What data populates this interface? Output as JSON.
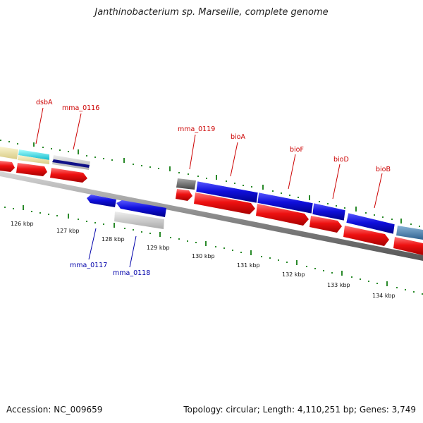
{
  "title": "Janthinobacterium sp. Marseille, complete genome",
  "footer": {
    "accession": "Accession: NC_009659",
    "summary": "Topology: circular; Length: 4,110,251 bp; Genes: 3,749"
  },
  "ruler_ticks_kbp": [
    "126 kbp",
    "127 kbp",
    "128 kbp",
    "129 kbp",
    "130 kbp",
    "131 kbp",
    "132 kbp",
    "133 kbp",
    "134 kbp"
  ],
  "genes_forward": [
    {
      "name": "dsbA",
      "color": "#cc0000"
    },
    {
      "name": "mma_0116",
      "color": "#cc0000"
    },
    {
      "name": "mma_0119",
      "color": "#cc0000"
    },
    {
      "name": "bioA",
      "color": "#cc0000"
    },
    {
      "name": "bioF",
      "color": "#cc0000"
    },
    {
      "name": "bioD",
      "color": "#cc0000"
    },
    {
      "name": "bioB",
      "color": "#cc0000"
    }
  ],
  "genes_reverse": [
    {
      "name": "mma_0117",
      "color": "#0000aa"
    },
    {
      "name": "mma_0118",
      "color": "#0000aa"
    }
  ],
  "colors": {
    "cds_red": "#ee1111",
    "gene_blue": "#1010dd",
    "cog_cyan": "#22e0ee",
    "cog_khaki": "#eee3a6",
    "cog_grey": "#777777",
    "cog_lightgrey": "#cccccc",
    "cog_steel": "#4a7fb0",
    "backbone": "#8a8a8a",
    "tick_green": "#2a8a2a"
  }
}
